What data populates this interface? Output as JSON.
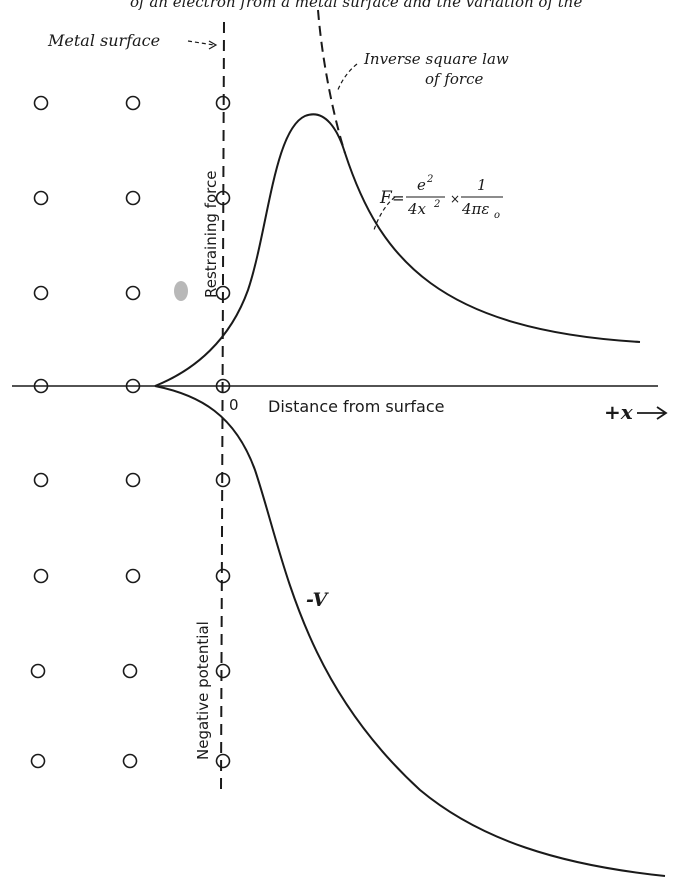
{
  "header_fragment": "of an electron from a metal surface and the variation of the",
  "labels": {
    "metal_surface": "Metal surface",
    "inverse_square_line1": "Inverse square law",
    "inverse_square_line2": "of force",
    "restraining_force": "Restraining force",
    "negative_potential": "Negative potential",
    "origin": "0",
    "distance_axis": "Distance from surface",
    "x_axis_end": "+x",
    "neg_v": "-V"
  },
  "formula": {
    "lhs": "F",
    "num1": "e",
    "num1_exp": "2",
    "den1": "4x",
    "den1_exp": "2",
    "times": "×",
    "num2": "1",
    "den2": "4πε",
    "den2_sub": "o"
  },
  "atoms": {
    "columns": 3,
    "rows_above_axis": 3,
    "rows_on_axis": 1,
    "rows_below_axis": 4
  },
  "colors": {
    "ink": "#1a1a1a",
    "paper": "#ffffff"
  }
}
